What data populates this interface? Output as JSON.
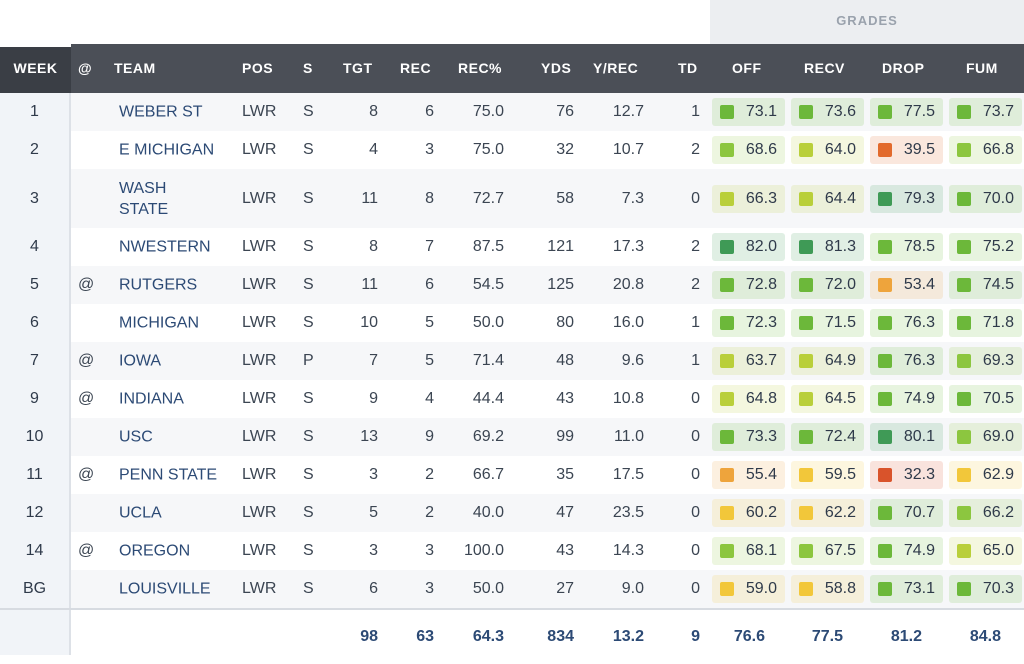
{
  "grades_label": "GRADES",
  "headers": {
    "week": "WEEK",
    "at": "@",
    "team": "TEAM",
    "pos": "POS",
    "s": "S",
    "tgt": "TGT",
    "rec": "REC",
    "recpct": "REC%",
    "yds": "YDS",
    "yrec": "Y/REC",
    "td": "TD",
    "off": "OFF",
    "recv": "RECV",
    "drop": "DROP",
    "fum": "FUM"
  },
  "colors": {
    "dark_green": "#3f9a56",
    "green": "#6cb83a",
    "light_green": "#8cc63f",
    "yellow_green": "#b9cf3a",
    "yellow": "#f2c73a",
    "orange": "#eea43c",
    "red_orange": "#e26a2c",
    "red": "#d9532b"
  },
  "rows": [
    {
      "week": "1",
      "at": "",
      "team": "WEBER ST",
      "pos": "LWR",
      "s": "S",
      "tgt": "8",
      "rec": "6",
      "recpct": "75.0",
      "yds": "76",
      "yrec": "12.7",
      "td": "1",
      "grades": [
        {
          "v": "73.1",
          "c": "green"
        },
        {
          "v": "73.6",
          "c": "green"
        },
        {
          "v": "77.5",
          "c": "green"
        },
        {
          "v": "73.7",
          "c": "green"
        }
      ]
    },
    {
      "week": "2",
      "at": "",
      "team": "E MICHIGAN",
      "pos": "LWR",
      "s": "S",
      "tgt": "4",
      "rec": "3",
      "recpct": "75.0",
      "yds": "32",
      "yrec": "10.7",
      "td": "2",
      "grades": [
        {
          "v": "68.6",
          "c": "light_green"
        },
        {
          "v": "64.0",
          "c": "yellow_green"
        },
        {
          "v": "39.5",
          "c": "red_orange"
        },
        {
          "v": "66.8",
          "c": "light_green"
        }
      ]
    },
    {
      "week": "3",
      "at": "",
      "team": "WASH STATE",
      "pos": "LWR",
      "s": "S",
      "tgt": "11",
      "rec": "8",
      "recpct": "72.7",
      "yds": "58",
      "yrec": "7.3",
      "td": "0",
      "grades": [
        {
          "v": "66.3",
          "c": "yellow_green"
        },
        {
          "v": "64.4",
          "c": "yellow_green"
        },
        {
          "v": "79.3",
          "c": "dark_green"
        },
        {
          "v": "70.0",
          "c": "green"
        }
      ]
    },
    {
      "week": "4",
      "at": "",
      "team": "NWESTERN",
      "pos": "LWR",
      "s": "S",
      "tgt": "8",
      "rec": "7",
      "recpct": "87.5",
      "yds": "121",
      "yrec": "17.3",
      "td": "2",
      "grades": [
        {
          "v": "82.0",
          "c": "dark_green"
        },
        {
          "v": "81.3",
          "c": "dark_green"
        },
        {
          "v": "78.5",
          "c": "green"
        },
        {
          "v": "75.2",
          "c": "green"
        }
      ]
    },
    {
      "week": "5",
      "at": "@",
      "team": "RUTGERS",
      "pos": "LWR",
      "s": "S",
      "tgt": "11",
      "rec": "6",
      "recpct": "54.5",
      "yds": "125",
      "yrec": "20.8",
      "td": "2",
      "grades": [
        {
          "v": "72.8",
          "c": "green"
        },
        {
          "v": "72.0",
          "c": "green"
        },
        {
          "v": "53.4",
          "c": "orange"
        },
        {
          "v": "74.5",
          "c": "green"
        }
      ]
    },
    {
      "week": "6",
      "at": "",
      "team": "MICHIGAN",
      "pos": "LWR",
      "s": "S",
      "tgt": "10",
      "rec": "5",
      "recpct": "50.0",
      "yds": "80",
      "yrec": "16.0",
      "td": "1",
      "grades": [
        {
          "v": "72.3",
          "c": "green"
        },
        {
          "v": "71.5",
          "c": "green"
        },
        {
          "v": "76.3",
          "c": "green"
        },
        {
          "v": "71.8",
          "c": "green"
        }
      ]
    },
    {
      "week": "7",
      "at": "@",
      "team": "IOWA",
      "pos": "LWR",
      "s": "P",
      "tgt": "7",
      "rec": "5",
      "recpct": "71.4",
      "yds": "48",
      "yrec": "9.6",
      "td": "1",
      "grades": [
        {
          "v": "63.7",
          "c": "yellow_green"
        },
        {
          "v": "64.9",
          "c": "yellow_green"
        },
        {
          "v": "76.3",
          "c": "green"
        },
        {
          "v": "69.3",
          "c": "light_green"
        }
      ]
    },
    {
      "week": "9",
      "at": "@",
      "team": "INDIANA",
      "pos": "LWR",
      "s": "S",
      "tgt": "9",
      "rec": "4",
      "recpct": "44.4",
      "yds": "43",
      "yrec": "10.8",
      "td": "0",
      "grades": [
        {
          "v": "64.8",
          "c": "yellow_green"
        },
        {
          "v": "64.5",
          "c": "yellow_green"
        },
        {
          "v": "74.9",
          "c": "green"
        },
        {
          "v": "70.5",
          "c": "green"
        }
      ]
    },
    {
      "week": "10",
      "at": "",
      "team": "USC",
      "pos": "LWR",
      "s": "S",
      "tgt": "13",
      "rec": "9",
      "recpct": "69.2",
      "yds": "99",
      "yrec": "11.0",
      "td": "0",
      "grades": [
        {
          "v": "73.3",
          "c": "green"
        },
        {
          "v": "72.4",
          "c": "green"
        },
        {
          "v": "80.1",
          "c": "dark_green"
        },
        {
          "v": "69.0",
          "c": "light_green"
        }
      ]
    },
    {
      "week": "11",
      "at": "@",
      "team": "PENN STATE",
      "pos": "LWR",
      "s": "S",
      "tgt": "3",
      "rec": "2",
      "recpct": "66.7",
      "yds": "35",
      "yrec": "17.5",
      "td": "0",
      "grades": [
        {
          "v": "55.4",
          "c": "orange"
        },
        {
          "v": "59.5",
          "c": "yellow"
        },
        {
          "v": "32.3",
          "c": "red"
        },
        {
          "v": "62.9",
          "c": "yellow"
        }
      ]
    },
    {
      "week": "12",
      "at": "",
      "team": "UCLA",
      "pos": "LWR",
      "s": "S",
      "tgt": "5",
      "rec": "2",
      "recpct": "40.0",
      "yds": "47",
      "yrec": "23.5",
      "td": "0",
      "grades": [
        {
          "v": "60.2",
          "c": "yellow"
        },
        {
          "v": "62.2",
          "c": "yellow"
        },
        {
          "v": "70.7",
          "c": "green"
        },
        {
          "v": "66.2",
          "c": "light_green"
        }
      ]
    },
    {
      "week": "14",
      "at": "@",
      "team": "OREGON",
      "pos": "LWR",
      "s": "S",
      "tgt": "3",
      "rec": "3",
      "recpct": "100.0",
      "yds": "43",
      "yrec": "14.3",
      "td": "0",
      "grades": [
        {
          "v": "68.1",
          "c": "light_green"
        },
        {
          "v": "67.5",
          "c": "light_green"
        },
        {
          "v": "74.9",
          "c": "green"
        },
        {
          "v": "65.0",
          "c": "yellow_green"
        }
      ]
    },
    {
      "week": "BG",
      "at": "",
      "team": "LOUISVILLE",
      "pos": "LWR",
      "s": "S",
      "tgt": "6",
      "rec": "3",
      "recpct": "50.0",
      "yds": "27",
      "yrec": "9.0",
      "td": "0",
      "grades": [
        {
          "v": "59.0",
          "c": "yellow"
        },
        {
          "v": "58.8",
          "c": "yellow"
        },
        {
          "v": "73.1",
          "c": "green"
        },
        {
          "v": "70.3",
          "c": "green"
        }
      ]
    }
  ],
  "totals": {
    "tgt": "98",
    "rec": "63",
    "recpct": "64.3",
    "yds": "834",
    "yrec": "13.2",
    "td": "9",
    "off": "76.6",
    "recv": "77.5",
    "drop": "81.2",
    "fum": "84.8"
  }
}
